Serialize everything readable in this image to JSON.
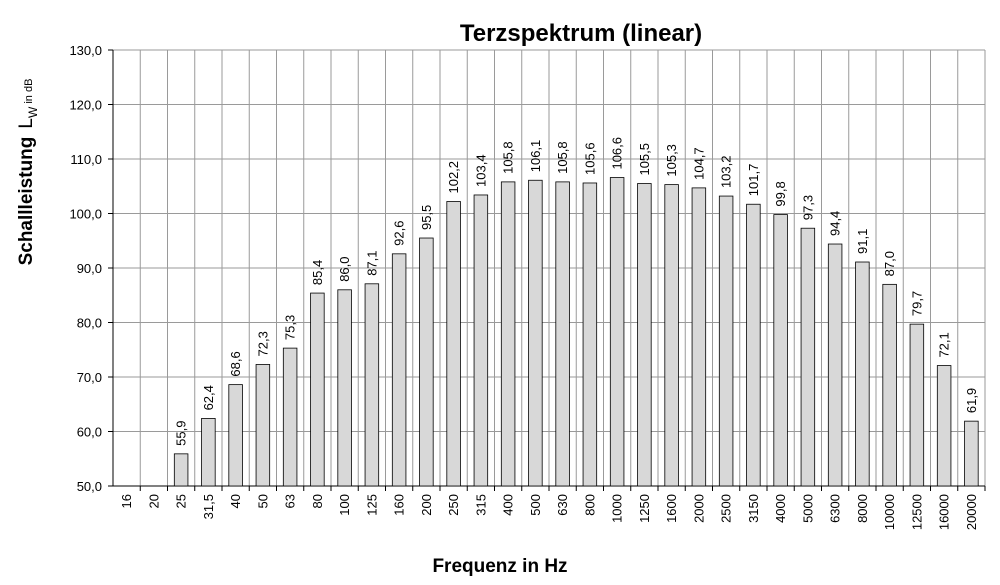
{
  "chart_data": {
    "type": "bar",
    "title": "Terzspektrum (linear)",
    "xlabel": "Frequenz in Hz",
    "ylabel": {
      "main": "Schallleistung",
      "symbol": "L",
      "subscript": "W",
      "unit": " in dB"
    },
    "ylim": [
      50,
      130
    ],
    "yticks": [
      "50,0",
      "60,0",
      "70,0",
      "80,0",
      "90,0",
      "100,0",
      "110,0",
      "120,0",
      "130,0"
    ],
    "grid": true,
    "categories": [
      "16",
      "20",
      "25",
      "31,5",
      "40",
      "50",
      "63",
      "80",
      "100",
      "125",
      "160",
      "200",
      "250",
      "315",
      "400",
      "500",
      "630",
      "800",
      "1000",
      "1250",
      "1600",
      "2000",
      "2500",
      "3150",
      "4000",
      "5000",
      "6300",
      "8000",
      "10000",
      "12500",
      "16000",
      "20000"
    ],
    "values": [
      null,
      null,
      55.9,
      62.4,
      68.6,
      72.3,
      75.3,
      85.4,
      86.0,
      87.1,
      92.6,
      95.5,
      102.2,
      103.4,
      105.8,
      106.1,
      105.8,
      105.6,
      106.6,
      105.5,
      105.3,
      104.7,
      103.2,
      101.7,
      99.8,
      97.3,
      94.4,
      91.1,
      87.0,
      79.7,
      72.1,
      61.9
    ],
    "data_labels": [
      "",
      "",
      "55,9",
      "62,4",
      "68,6",
      "72,3",
      "75,3",
      "85,4",
      "86,0",
      "87,1",
      "92,6",
      "95,5",
      "102,2",
      "103,4",
      "105,8",
      "106,1",
      "105,8",
      "105,6",
      "106,6",
      "105,5",
      "105,3",
      "104,7",
      "103,2",
      "101,7",
      "99,8",
      "97,3",
      "94,4",
      "91,1",
      "87,0",
      "79,7",
      "72,1",
      "61,9"
    ],
    "bar_color": "#d8d8d8"
  }
}
